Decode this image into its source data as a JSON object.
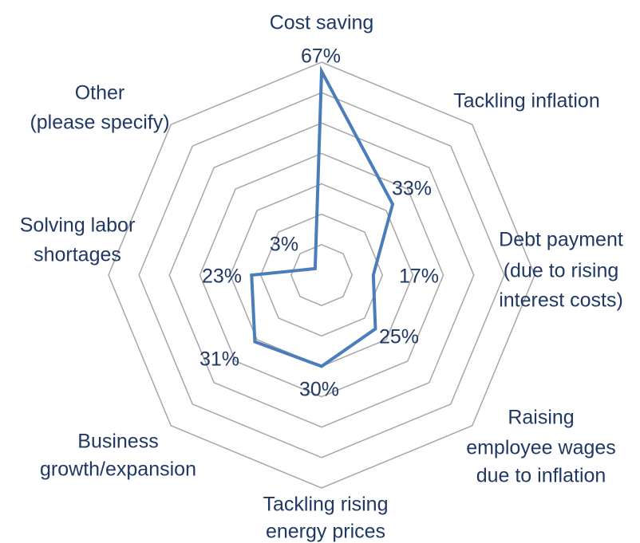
{
  "chart_data": {
    "type": "radar",
    "categories": [
      [
        "Cost saving"
      ],
      [
        "Tackling inflation"
      ],
      [
        "Debt payment",
        "(due to rising",
        "interest costs)"
      ],
      [
        "Raising",
        "employee wages",
        "due to inflation"
      ],
      [
        "Tackling rising",
        "energy prices"
      ],
      [
        "Business",
        "growth/expansion"
      ],
      [
        "Solving labor",
        "shortages"
      ],
      [
        "Other",
        "(please specify)"
      ]
    ],
    "values": [
      67,
      33,
      17,
      25,
      30,
      31,
      23,
      3
    ],
    "value_labels": [
      "67%",
      "33%",
      "17%",
      "25%",
      "30%",
      "31%",
      "23%",
      "3%"
    ],
    "color": "#4a7ebb",
    "rlim": [
      0,
      70
    ],
    "rticks": [
      10,
      20,
      30,
      40,
      50,
      60,
      70
    ],
    "grid": true
  }
}
